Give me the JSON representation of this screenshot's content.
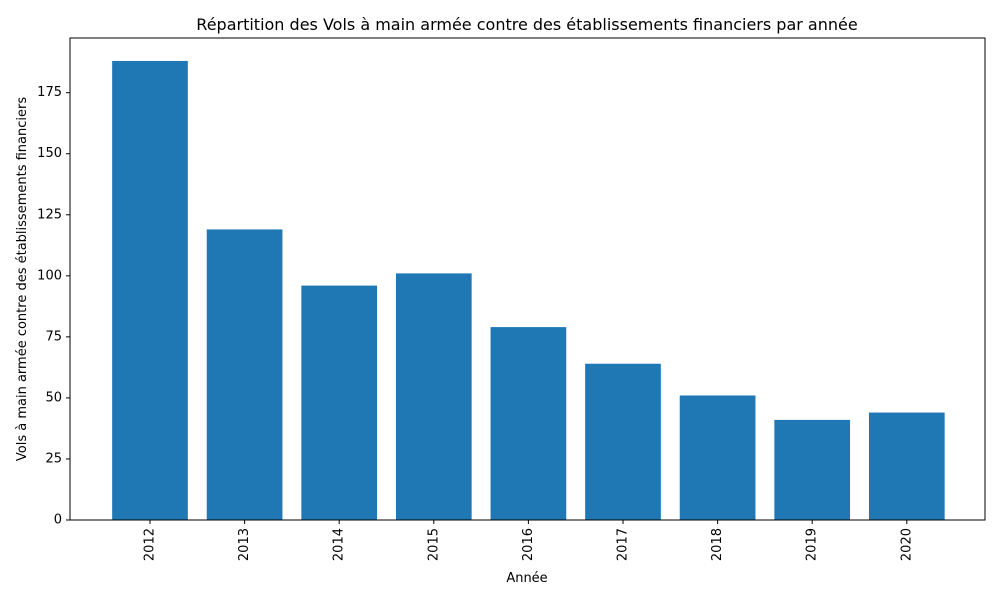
{
  "chart_data": {
    "type": "bar",
    "title": "Répartition des Vols à main armée contre des établissements financiers par année",
    "xlabel": "Année",
    "ylabel": "Vols à main armée contre des établissements financiers",
    "categories": [
      "2012",
      "2013",
      "2014",
      "2015",
      "2016",
      "2017",
      "2018",
      "2019",
      "2020"
    ],
    "values": [
      188,
      119,
      96,
      101,
      79,
      64,
      51,
      41,
      44
    ],
    "ylim": [
      0,
      197.4
    ],
    "yticks": [
      0,
      25,
      50,
      75,
      100,
      125,
      150,
      175
    ],
    "xtick_rotation": "vertical",
    "grid": false,
    "legend": "none",
    "bar_color": "#1f77b4"
  }
}
